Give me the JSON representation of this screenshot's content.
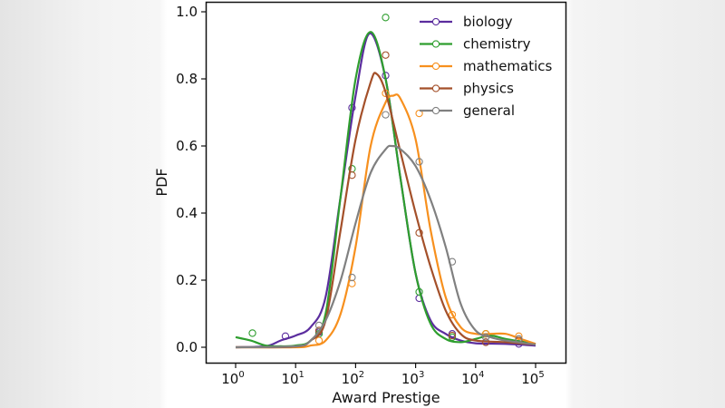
{
  "chart_data": {
    "type": "line",
    "title": "",
    "xlabel": "Award Prestige",
    "ylabel": "PDF",
    "xscale": "log",
    "xlim_log10": [
      -0.5,
      5.5
    ],
    "ylim": [
      -0.05,
      1.05
    ],
    "x_ticks": [
      {
        "exp": 0,
        "label": "10",
        "sup": "0"
      },
      {
        "exp": 1,
        "label": "10",
        "sup": "1"
      },
      {
        "exp": 2,
        "label": "10",
        "sup": "2"
      },
      {
        "exp": 3,
        "label": "10",
        "sup": "3"
      },
      {
        "exp": 4,
        "label": "10",
        "sup": "4"
      },
      {
        "exp": 5,
        "label": "10",
        "sup": "5"
      }
    ],
    "y_ticks": [
      "0.0",
      "0.2",
      "0.4",
      "0.6",
      "0.8",
      "1.0"
    ],
    "y_tick_values": [
      0,
      0.2,
      0.4,
      0.6,
      0.8,
      1.0
    ],
    "grid": false,
    "legend_position": "top-right",
    "marker_log10_x": [
      0.28,
      0.83,
      1.39,
      1.94,
      2.5,
      3.06,
      3.61,
      4.17,
      4.72
    ],
    "series": [
      {
        "name": "biology",
        "color": "#5b2d9e",
        "curve_log10_x": [
          0,
          0.5,
          0.75,
          1,
          1.25,
          1.5,
          1.75,
          2,
          2.23,
          2.5,
          2.75,
          3,
          3.25,
          3.5,
          3.75,
          4,
          4.5,
          5
        ],
        "curve_y": [
          0,
          0.003,
          0.02,
          0.035,
          0.06,
          0.15,
          0.45,
          0.75,
          0.935,
          0.8,
          0.5,
          0.22,
          0.08,
          0.04,
          0.02,
          0.012,
          0.01,
          0.005
        ],
        "markers_y": [
          null,
          0.033,
          0.045,
          0.714,
          0.81,
          0.146,
          0.04,
          0.015,
          0.01
        ]
      },
      {
        "name": "chemistry",
        "color": "#2e9e2e",
        "curve_log10_x": [
          0,
          0.25,
          0.5,
          0.75,
          1,
          1.25,
          1.5,
          1.75,
          2,
          2.25,
          2.5,
          2.75,
          3,
          3.25,
          3.5,
          3.75,
          4,
          4.25,
          4.5,
          5
        ],
        "curve_y": [
          0.03,
          0.02,
          0.005,
          0.003,
          0.005,
          0.02,
          0.1,
          0.45,
          0.8,
          0.94,
          0.8,
          0.5,
          0.22,
          0.07,
          0.025,
          0.015,
          0.025,
          0.035,
          0.025,
          0.01
        ],
        "markers_y": [
          0.042,
          null,
          0.04,
          0.532,
          0.983,
          0.165,
          0.03,
          0.04,
          0.02
        ]
      },
      {
        "name": "mathematics",
        "color": "#f7901e",
        "curve_log10_x": [
          0,
          1,
          1.25,
          1.5,
          1.75,
          2,
          2.25,
          2.5,
          2.63,
          2.75,
          3,
          3.25,
          3.5,
          3.75,
          4,
          4.25,
          4.5,
          4.75,
          5
        ],
        "curve_y": [
          0,
          0,
          0.005,
          0.02,
          0.1,
          0.3,
          0.6,
          0.73,
          0.75,
          0.74,
          0.62,
          0.35,
          0.15,
          0.06,
          0.04,
          0.04,
          0.04,
          0.025,
          0.01
        ],
        "markers_y": [
          null,
          null,
          0.02,
          0.19,
          0.757,
          0.697,
          0.097,
          0.04,
          0.033
        ]
      },
      {
        "name": "physics",
        "color": "#a4502a",
        "curve_log10_x": [
          0,
          1,
          1.25,
          1.5,
          1.75,
          2,
          2.25,
          2.35,
          2.5,
          2.75,
          3,
          3.25,
          3.5,
          3.75,
          4,
          4.5,
          5
        ],
        "curve_y": [
          0,
          0.002,
          0.02,
          0.08,
          0.35,
          0.62,
          0.79,
          0.815,
          0.76,
          0.58,
          0.4,
          0.24,
          0.11,
          0.04,
          0.02,
          0.015,
          0.008
        ],
        "markers_y": [
          null,
          null,
          0.05,
          0.513,
          0.871,
          0.341,
          0.035,
          0.015,
          0.02
        ]
      },
      {
        "name": "general",
        "color": "#808080",
        "curve_log10_x": [
          0,
          1,
          1.25,
          1.5,
          1.75,
          2,
          2.25,
          2.5,
          2.6,
          2.75,
          3,
          3.25,
          3.5,
          3.75,
          4,
          4.25,
          4.5,
          5
        ],
        "curve_y": [
          0,
          0.003,
          0.02,
          0.08,
          0.2,
          0.37,
          0.52,
          0.59,
          0.6,
          0.59,
          0.54,
          0.44,
          0.3,
          0.13,
          0.05,
          0.03,
          0.02,
          0.008
        ],
        "markers_y": [
          null,
          null,
          0.065,
          0.208,
          0.693,
          0.553,
          0.255,
          0.03,
          0.025
        ]
      }
    ]
  }
}
